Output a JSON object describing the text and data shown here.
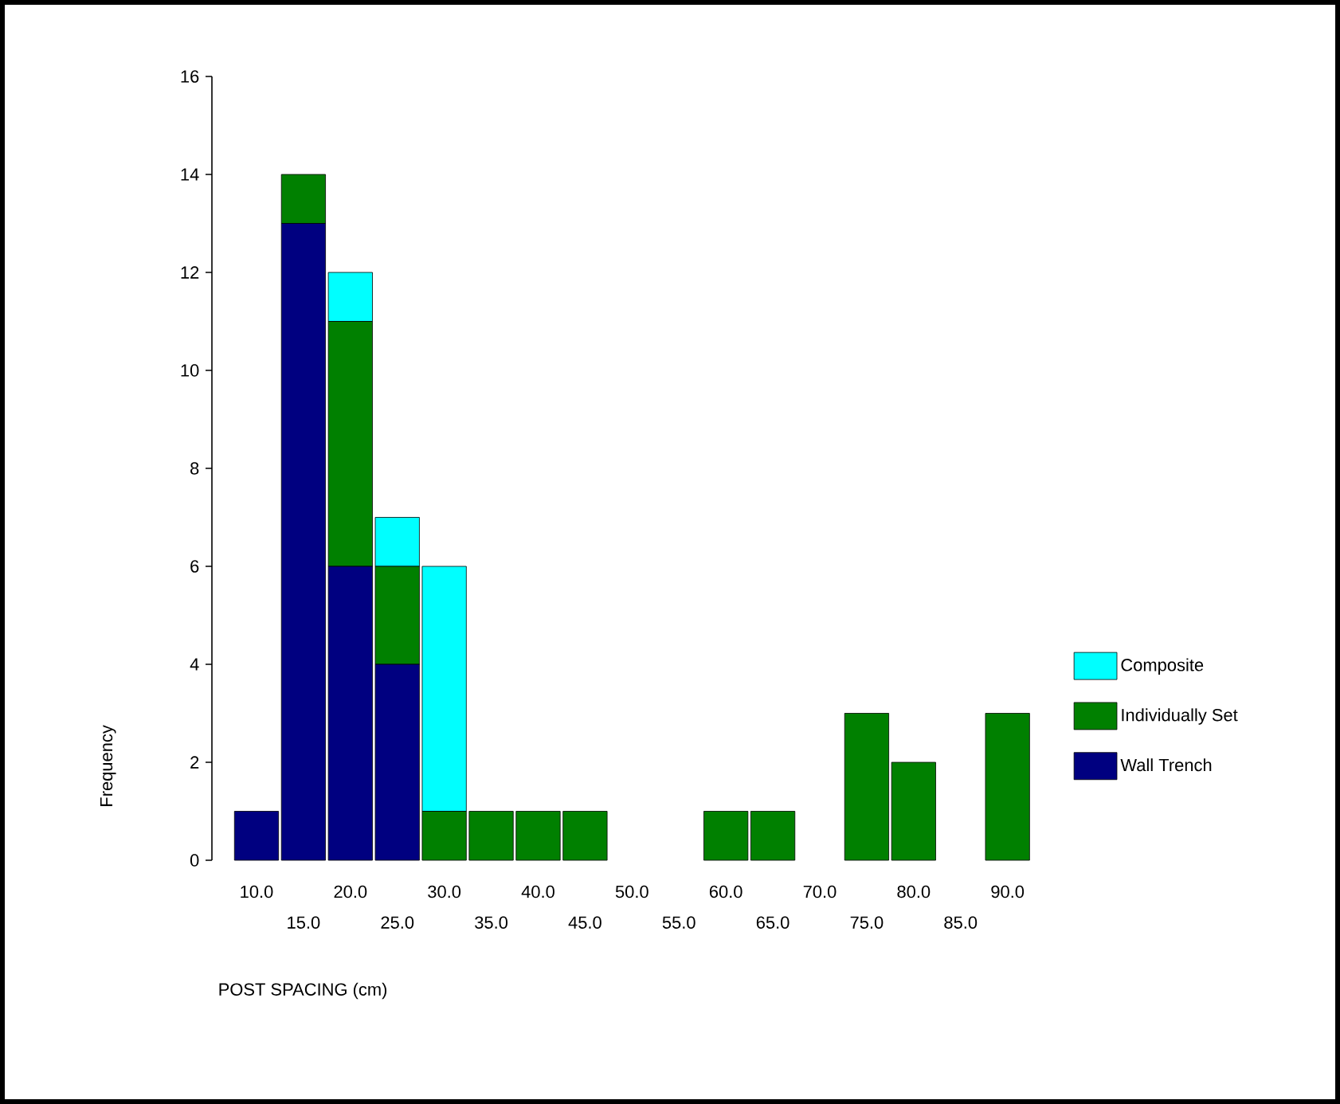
{
  "chart_data": {
    "type": "bar",
    "stacked": true,
    "xlabel": "POST SPACING (cm)",
    "ylabel": "Frequency",
    "categories": [
      "10.0",
      "15.0",
      "20.0",
      "25.0",
      "30.0",
      "35.0",
      "40.0",
      "45.0",
      "50.0",
      "55.0",
      "60.0",
      "65.0",
      "70.0",
      "75.0",
      "80.0",
      "85.0",
      "90.0"
    ],
    "series": [
      {
        "name": "Wall Trench",
        "color": "#000080",
        "values": [
          1,
          13,
          6,
          4,
          0,
          0,
          0,
          0,
          0,
          0,
          0,
          0,
          0,
          0,
          0,
          0,
          0
        ]
      },
      {
        "name": "Individually Set",
        "color": "#008000",
        "values": [
          0,
          1,
          5,
          2,
          1,
          1,
          1,
          1,
          0,
          0,
          1,
          1,
          0,
          3,
          2,
          0,
          3
        ]
      },
      {
        "name": "Composite",
        "color": "#00ffff",
        "values": [
          0,
          0,
          1,
          1,
          5,
          0,
          0,
          0,
          0,
          0,
          0,
          0,
          0,
          0,
          0,
          0,
          0
        ]
      }
    ],
    "ylim": [
      0,
      16
    ],
    "yticks": [
      0,
      2,
      4,
      6,
      8,
      10,
      12,
      14,
      16
    ],
    "grid": false,
    "legend": "right"
  }
}
